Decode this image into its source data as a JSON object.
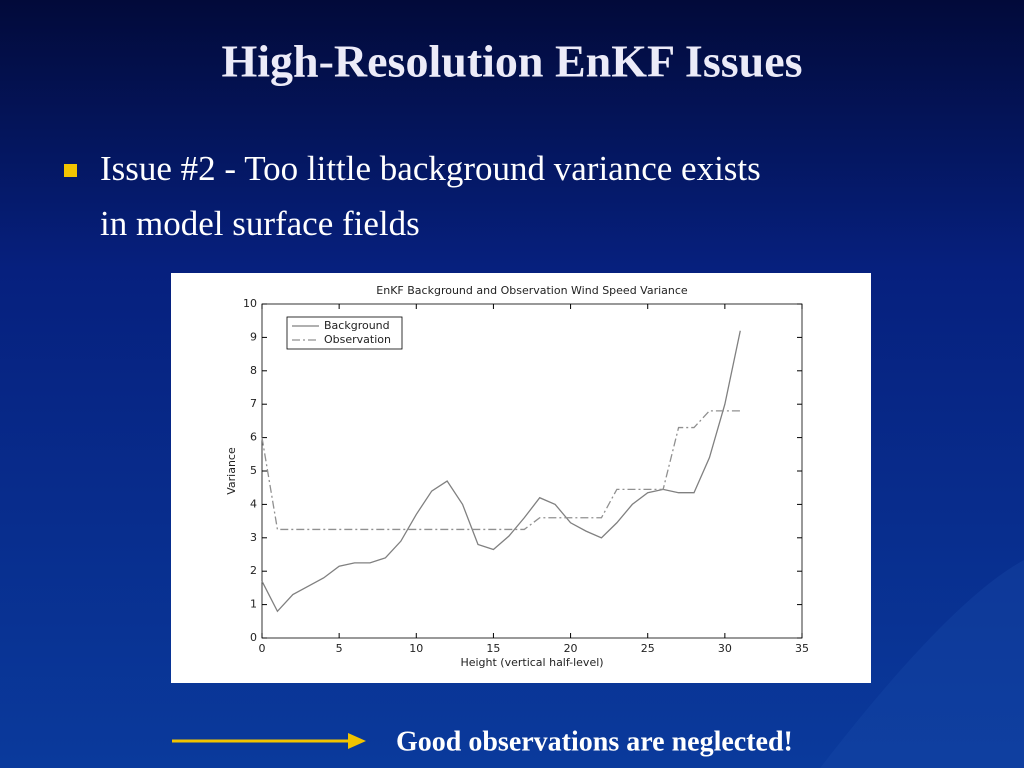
{
  "slide": {
    "title": "High-Resolution EnKF Issues",
    "bullet": [
      "Issue #2 - Too little background variance exists",
      "in model surface fields"
    ],
    "note": "Good observations are neglected!"
  },
  "chart_data": {
    "type": "line",
    "title": "EnKF Background and Observation Wind Speed Variance",
    "x_label": "Height (vertical half-level)",
    "y_label": "Variance",
    "x": [
      0,
      1,
      2,
      3,
      4,
      5,
      6,
      7,
      8,
      9,
      10,
      11,
      12,
      13,
      14,
      15,
      16,
      17,
      18,
      19,
      20,
      21,
      22,
      23,
      24,
      25,
      26,
      27,
      28,
      29,
      30,
      31
    ],
    "series": [
      {
        "name": "Background",
        "color": "#808080",
        "dash": "solid",
        "values": [
          1.7,
          0.8,
          1.3,
          1.55,
          1.8,
          2.15,
          2.25,
          2.25,
          2.4,
          2.9,
          3.7,
          4.4,
          4.7,
          4.0,
          2.8,
          2.65,
          3.05,
          3.6,
          4.2,
          4.0,
          3.45,
          3.2,
          3.0,
          3.45,
          4.0,
          4.35,
          4.45,
          4.35,
          4.35,
          5.4,
          7.0,
          9.2
        ]
      },
      {
        "name": "Observation",
        "color": "#909090",
        "dash": "dashdot",
        "values": [
          6.0,
          3.25,
          3.25,
          3.25,
          3.25,
          3.25,
          3.25,
          3.25,
          3.25,
          3.25,
          3.25,
          3.25,
          3.25,
          3.25,
          3.25,
          3.25,
          3.25,
          3.25,
          3.6,
          3.6,
          3.6,
          3.6,
          3.6,
          4.45,
          4.45,
          4.45,
          4.45,
          6.3,
          6.3,
          6.8,
          6.8,
          6.8
        ]
      }
    ],
    "xlim": [
      0,
      35
    ],
    "xticks": [
      0,
      5,
      10,
      15,
      20,
      25,
      30,
      35
    ],
    "ylim": [
      0,
      10
    ],
    "yticks": [
      0,
      1,
      2,
      3,
      4,
      5,
      6,
      7,
      8,
      9,
      10
    ],
    "grid": false,
    "legend": "upper left"
  }
}
